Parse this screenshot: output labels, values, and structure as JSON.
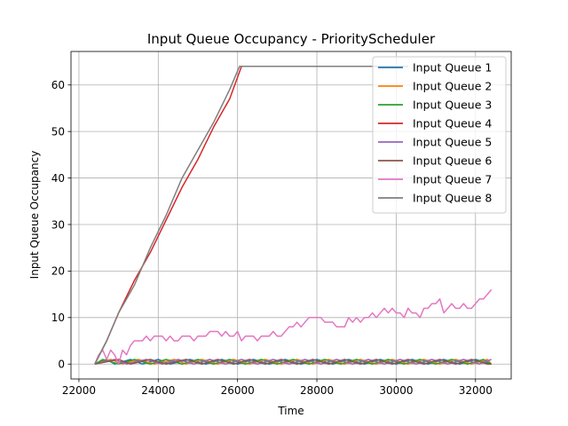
{
  "chart_data": {
    "type": "line",
    "title": "Input Queue Occupancy - PriorityScheduler",
    "xlabel": "Time",
    "ylabel": "Input Queue Occupancy",
    "xlim": [
      21800,
      32900
    ],
    "ylim": [
      -3.2,
      67.2
    ],
    "xticks": [
      22000,
      24000,
      26000,
      28000,
      30000,
      32000
    ],
    "yticks": [
      0,
      10,
      20,
      30,
      40,
      50,
      60
    ],
    "grid": true,
    "legend_position": "top-right",
    "series": [
      {
        "name": "Input Queue 1",
        "color": "#1f77b4",
        "points": [
          [
            22400,
            0
          ],
          [
            22700,
            1
          ],
          [
            22900,
            0
          ],
          [
            23300,
            1
          ],
          [
            23600,
            0
          ],
          [
            24000,
            1
          ],
          [
            24300,
            0
          ],
          [
            24800,
            1
          ],
          [
            25200,
            0
          ],
          [
            25600,
            1
          ],
          [
            26000,
            0
          ],
          [
            26400,
            1
          ],
          [
            26800,
            0
          ],
          [
            27200,
            1
          ],
          [
            27600,
            0
          ],
          [
            28000,
            1
          ],
          [
            28400,
            0
          ],
          [
            28800,
            1
          ],
          [
            29200,
            0
          ],
          [
            29600,
            1
          ],
          [
            30000,
            0
          ],
          [
            30400,
            1
          ],
          [
            30800,
            0
          ],
          [
            31200,
            1
          ],
          [
            31600,
            0
          ],
          [
            32000,
            1
          ],
          [
            32400,
            0
          ]
        ]
      },
      {
        "name": "Input Queue 2",
        "color": "#ff7f0e",
        "points": [
          [
            22400,
            0
          ],
          [
            22800,
            1
          ],
          [
            23100,
            0
          ],
          [
            23500,
            1
          ],
          [
            23900,
            0
          ],
          [
            24400,
            1
          ],
          [
            24700,
            0
          ],
          [
            25100,
            1
          ],
          [
            25500,
            0
          ],
          [
            25900,
            1
          ],
          [
            26300,
            0
          ],
          [
            26700,
            1
          ],
          [
            27100,
            0
          ],
          [
            27500,
            1
          ],
          [
            27900,
            0
          ],
          [
            28300,
            1
          ],
          [
            28700,
            0
          ],
          [
            29100,
            1
          ],
          [
            29500,
            0
          ],
          [
            29900,
            1
          ],
          [
            30300,
            0
          ],
          [
            30700,
            1
          ],
          [
            31100,
            0
          ],
          [
            31500,
            1
          ],
          [
            31900,
            0
          ],
          [
            32300,
            1
          ],
          [
            32400,
            0
          ]
        ]
      },
      {
        "name": "Input Queue 3",
        "color": "#2ca02c",
        "points": [
          [
            22400,
            0
          ],
          [
            22600,
            1
          ],
          [
            23000,
            0
          ],
          [
            23400,
            1
          ],
          [
            23800,
            0
          ],
          [
            24200,
            1
          ],
          [
            24600,
            0
          ],
          [
            25000,
            1
          ],
          [
            25400,
            0
          ],
          [
            25800,
            1
          ],
          [
            26200,
            0
          ],
          [
            26600,
            1
          ],
          [
            27000,
            0
          ],
          [
            27400,
            1
          ],
          [
            27800,
            0
          ],
          [
            28200,
            1
          ],
          [
            28600,
            0
          ],
          [
            29000,
            1
          ],
          [
            29400,
            0
          ],
          [
            29800,
            1
          ],
          [
            30200,
            0
          ],
          [
            30600,
            1
          ],
          [
            31000,
            0
          ],
          [
            31400,
            1
          ],
          [
            31800,
            0
          ],
          [
            32200,
            1
          ],
          [
            32400,
            0
          ]
        ]
      },
      {
        "name": "Input Queue 4",
        "color": "#d62728",
        "points": [
          [
            22400,
            0
          ],
          [
            22700,
            5
          ],
          [
            23000,
            11
          ],
          [
            23400,
            18
          ],
          [
            23800,
            24
          ],
          [
            24200,
            31
          ],
          [
            24600,
            38
          ],
          [
            25000,
            44
          ],
          [
            25400,
            51
          ],
          [
            25800,
            57
          ],
          [
            26100,
            64
          ],
          [
            26500,
            64
          ],
          [
            27000,
            64
          ],
          [
            28000,
            64
          ],
          [
            29000,
            64
          ],
          [
            30000,
            64
          ],
          [
            30300,
            64
          ]
        ]
      },
      {
        "name": "Input Queue 5",
        "color": "#9467bd",
        "points": [
          [
            22400,
            0
          ],
          [
            22900,
            1
          ],
          [
            23200,
            0
          ],
          [
            23700,
            1
          ],
          [
            24100,
            0
          ],
          [
            24500,
            1
          ],
          [
            24900,
            0
          ],
          [
            25300,
            1
          ],
          [
            25700,
            0
          ],
          [
            26100,
            1
          ],
          [
            26500,
            0
          ],
          [
            26900,
            1
          ],
          [
            27300,
            0
          ],
          [
            27700,
            1
          ],
          [
            28100,
            0
          ],
          [
            28500,
            1
          ],
          [
            28900,
            0
          ],
          [
            29300,
            1
          ],
          [
            29700,
            0
          ],
          [
            30100,
            1
          ],
          [
            30500,
            0
          ],
          [
            30900,
            1
          ],
          [
            31300,
            0
          ],
          [
            31700,
            1
          ],
          [
            32100,
            0
          ],
          [
            32400,
            1
          ]
        ]
      },
      {
        "name": "Input Queue 6",
        "color": "#8c564b",
        "points": [
          [
            22400,
            0
          ],
          [
            23000,
            1
          ],
          [
            23300,
            0
          ],
          [
            23800,
            1
          ],
          [
            24200,
            0
          ],
          [
            24700,
            1
          ],
          [
            25100,
            0
          ],
          [
            25500,
            1
          ],
          [
            25900,
            0
          ],
          [
            26300,
            1
          ],
          [
            26700,
            0
          ],
          [
            27100,
            1
          ],
          [
            27500,
            0
          ],
          [
            27900,
            1
          ],
          [
            28300,
            0
          ],
          [
            28700,
            1
          ],
          [
            29100,
            0
          ],
          [
            29500,
            1
          ],
          [
            29900,
            0
          ],
          [
            30300,
            1
          ],
          [
            30700,
            0
          ],
          [
            31100,
            1
          ],
          [
            31500,
            0
          ],
          [
            31900,
            1
          ],
          [
            32300,
            0
          ],
          [
            32400,
            0
          ]
        ]
      },
      {
        "name": "Input Queue 7",
        "color": "#e377c2",
        "points": [
          [
            22400,
            0
          ],
          [
            22500,
            2
          ],
          [
            22600,
            3
          ],
          [
            22700,
            1
          ],
          [
            22800,
            3
          ],
          [
            22900,
            2
          ],
          [
            23000,
            0
          ],
          [
            23100,
            3
          ],
          [
            23200,
            2
          ],
          [
            23300,
            4
          ],
          [
            23400,
            5
          ],
          [
            23600,
            5
          ],
          [
            23700,
            6
          ],
          [
            23800,
            5
          ],
          [
            23900,
            6
          ],
          [
            24100,
            6
          ],
          [
            24200,
            5
          ],
          [
            24300,
            6
          ],
          [
            24400,
            5
          ],
          [
            24500,
            5
          ],
          [
            24600,
            6
          ],
          [
            24800,
            6
          ],
          [
            24900,
            5
          ],
          [
            25000,
            6
          ],
          [
            25200,
            6
          ],
          [
            25300,
            7
          ],
          [
            25500,
            7
          ],
          [
            25600,
            6
          ],
          [
            25700,
            7
          ],
          [
            25800,
            6
          ],
          [
            25900,
            6
          ],
          [
            26000,
            7
          ],
          [
            26100,
            5
          ],
          [
            26200,
            6
          ],
          [
            26400,
            6
          ],
          [
            26500,
            5
          ],
          [
            26600,
            6
          ],
          [
            26800,
            6
          ],
          [
            26900,
            7
          ],
          [
            27000,
            6
          ],
          [
            27100,
            6
          ],
          [
            27200,
            7
          ],
          [
            27300,
            8
          ],
          [
            27400,
            8
          ],
          [
            27500,
            9
          ],
          [
            27600,
            8
          ],
          [
            27700,
            9
          ],
          [
            27800,
            10
          ],
          [
            28100,
            10
          ],
          [
            28200,
            9
          ],
          [
            28300,
            9
          ],
          [
            28400,
            9
          ],
          [
            28500,
            8
          ],
          [
            28700,
            8
          ],
          [
            28800,
            10
          ],
          [
            28900,
            9
          ],
          [
            29000,
            10
          ],
          [
            29100,
            9
          ],
          [
            29200,
            10
          ],
          [
            29300,
            10
          ],
          [
            29400,
            11
          ],
          [
            29500,
            10
          ],
          [
            29600,
            11
          ],
          [
            29700,
            12
          ],
          [
            29800,
            11
          ],
          [
            29900,
            12
          ],
          [
            30000,
            11
          ],
          [
            30100,
            11
          ],
          [
            30200,
            10
          ],
          [
            30300,
            12
          ],
          [
            30400,
            11
          ],
          [
            30500,
            11
          ],
          [
            30600,
            10
          ],
          [
            30700,
            12
          ],
          [
            30800,
            12
          ],
          [
            30900,
            13
          ],
          [
            31000,
            13
          ],
          [
            31100,
            14
          ],
          [
            31200,
            11
          ],
          [
            31300,
            12
          ],
          [
            31400,
            13
          ],
          [
            31500,
            12
          ],
          [
            31600,
            12
          ],
          [
            31700,
            13
          ],
          [
            31800,
            12
          ],
          [
            31900,
            12
          ],
          [
            32000,
            13
          ],
          [
            32100,
            14
          ],
          [
            32200,
            14
          ],
          [
            32300,
            15
          ],
          [
            32400,
            16
          ]
        ]
      },
      {
        "name": "Input Queue 8",
        "color": "#7f7f7f",
        "points": [
          [
            22400,
            0
          ],
          [
            22700,
            5
          ],
          [
            23000,
            11
          ],
          [
            23400,
            17
          ],
          [
            23800,
            25
          ],
          [
            24200,
            32
          ],
          [
            24600,
            40
          ],
          [
            25000,
            46
          ],
          [
            25400,
            52
          ],
          [
            25800,
            59
          ],
          [
            26050,
            64
          ],
          [
            26500,
            64
          ],
          [
            27000,
            64
          ],
          [
            28000,
            64
          ],
          [
            29000,
            64
          ],
          [
            30000,
            64
          ],
          [
            30300,
            64
          ]
        ]
      }
    ]
  }
}
